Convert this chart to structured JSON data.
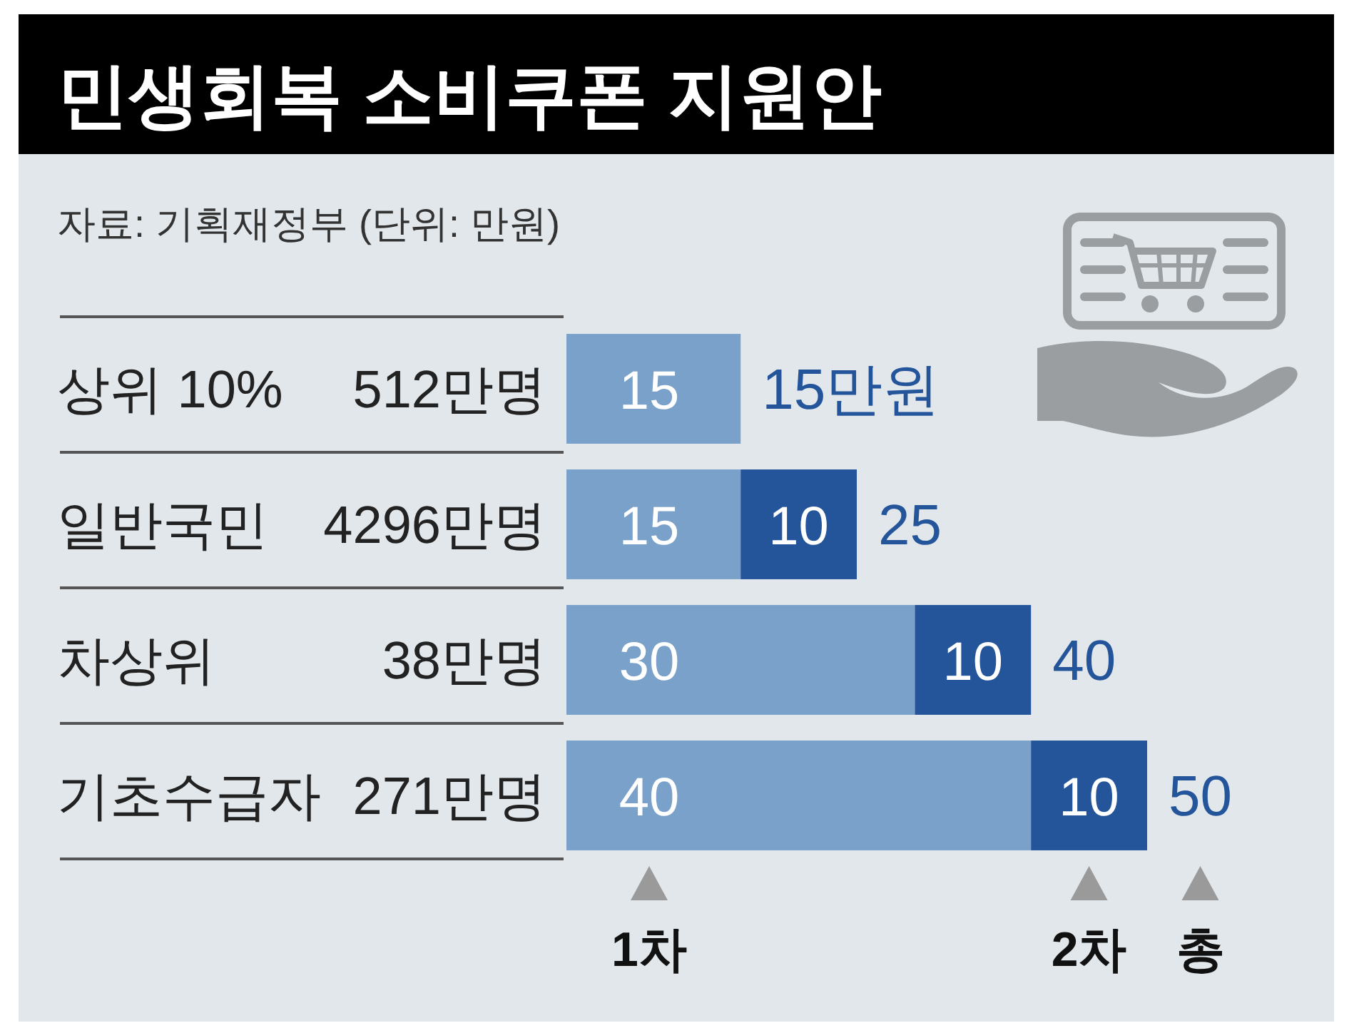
{
  "chart_data": {
    "type": "bar",
    "orientation": "horizontal",
    "stacked": true,
    "title": "민생회복 소비쿠폰 지원안",
    "annotations": [
      "자료: 기획재정부 (단위: 만원)",
      "총"
    ],
    "categories": [
      "상위 10% 512만명",
      "일반국민 4296만명",
      "차상위 38만명",
      "기초수급자 271만명"
    ],
    "series": [
      {
        "name": "1차",
        "color": "#7aa1c9",
        "values": [
          15,
          15,
          30,
          40
        ]
      },
      {
        "name": "2차",
        "color": "#24559b",
        "values": [
          null,
          10,
          10,
          10
        ]
      }
    ],
    "xlim": [
      0,
      50
    ],
    "data_labels": true,
    "totals": [
      "15만원",
      "25",
      "40",
      "50"
    ]
  }
}
